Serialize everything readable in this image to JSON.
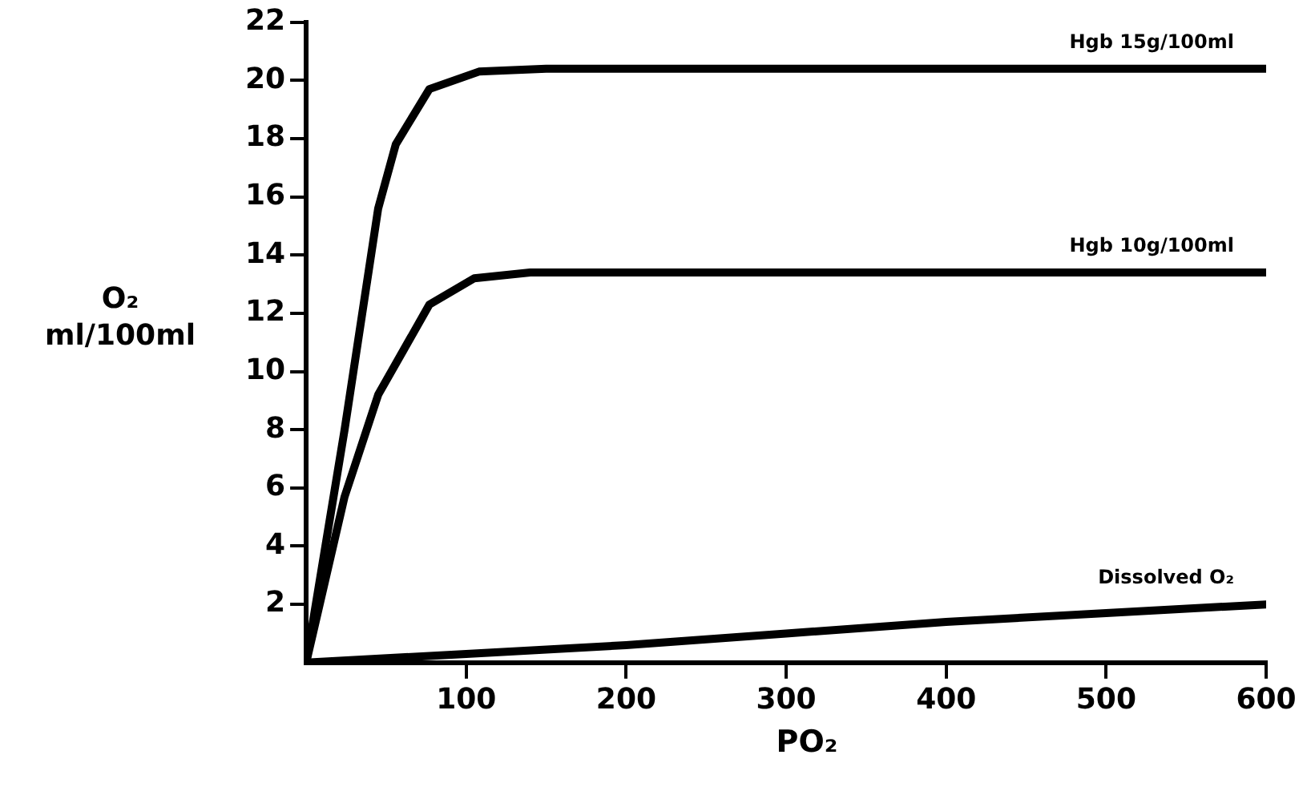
{
  "chart_data": {
    "type": "line",
    "xlabel": "PO₂",
    "ylabel": "O₂ ml/100ml",
    "xlim": [
      0,
      600
    ],
    "xticks": [
      100,
      200,
      300,
      400,
      500,
      600
    ],
    "ylim": [
      0,
      22
    ],
    "yticks": [
      2,
      4,
      6,
      8,
      10,
      12,
      14,
      16,
      18,
      20,
      22
    ],
    "grid": false,
    "legend": false,
    "marker": "none",
    "line_style": "solid",
    "series": [
      {
        "name": "Hgb 15g/100ml",
        "color": "#000000",
        "x": [
          0,
          24,
          45,
          56,
          77,
          108,
          150,
          300,
          600
        ],
        "values": [
          0,
          8,
          15.6,
          17.8,
          19.7,
          20.3,
          20.4,
          20.4,
          20.4
        ]
      },
      {
        "name": "Hgb 10g/100ml",
        "color": "#000000",
        "x": [
          0,
          24,
          45,
          77,
          105,
          140,
          300,
          600
        ],
        "values": [
          0,
          5.7,
          9.2,
          12.3,
          13.2,
          13.4,
          13.4,
          13.4
        ]
      },
      {
        "name": "Dissolved O₂",
        "color": "#000000",
        "x": [
          0,
          100,
          200,
          300,
          400,
          500,
          600
        ],
        "values": [
          0,
          0.3,
          0.6,
          1.0,
          1.4,
          1.7,
          2.0
        ]
      }
    ]
  }
}
